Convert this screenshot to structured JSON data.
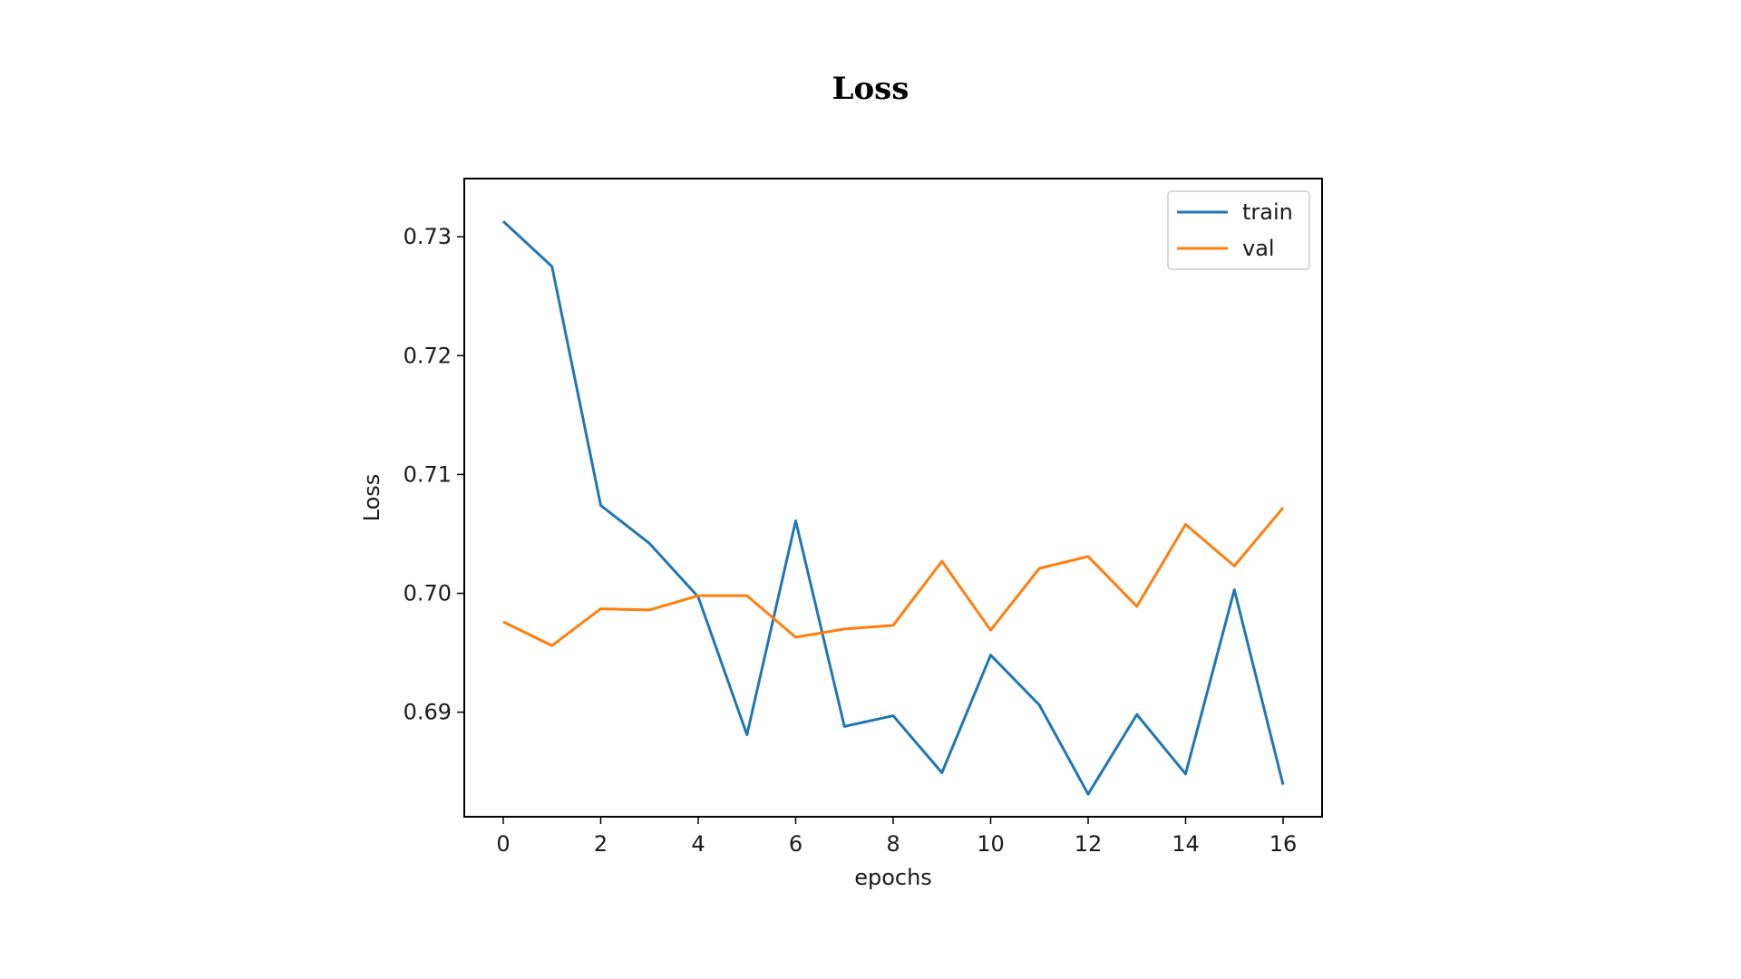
{
  "title": "Loss",
  "chart_data": {
    "type": "line",
    "title": "",
    "xlabel": "epochs",
    "ylabel": "Loss",
    "x": [
      0,
      1,
      2,
      3,
      4,
      5,
      6,
      7,
      8,
      9,
      10,
      11,
      12,
      13,
      14,
      15,
      16
    ],
    "xlim": [
      -0.8,
      16.8
    ],
    "ylim": [
      0.6812,
      0.7349
    ],
    "xticks": [
      0,
      2,
      4,
      6,
      8,
      10,
      12,
      14,
      16
    ],
    "xtick_labels": [
      "0",
      "2",
      "4",
      "6",
      "8",
      "10",
      "12",
      "14",
      "16"
    ],
    "yticks": [
      0.69,
      0.7,
      0.71,
      0.72,
      0.73
    ],
    "ytick_labels": [
      "0.69",
      "0.70",
      "0.71",
      "0.72",
      "0.73"
    ],
    "grid": false,
    "legend_position": "top-right",
    "series": [
      {
        "name": "train",
        "color": "#1f77b4",
        "values": [
          0.7313,
          0.7275,
          0.7074,
          0.7042,
          0.6997,
          0.6881,
          0.7061,
          0.6888,
          0.6897,
          0.6849,
          0.6948,
          0.6906,
          0.6831,
          0.6898,
          0.6848,
          0.7003,
          0.6839
        ]
      },
      {
        "name": "val",
        "color": "#ff7f0e",
        "values": [
          0.6976,
          0.6956,
          0.6987,
          0.6986,
          0.6998,
          0.6998,
          0.6963,
          0.697,
          0.6973,
          0.7027,
          0.6969,
          0.7021,
          0.7031,
          0.6989,
          0.7058,
          0.7023,
          0.7072
        ]
      }
    ]
  }
}
